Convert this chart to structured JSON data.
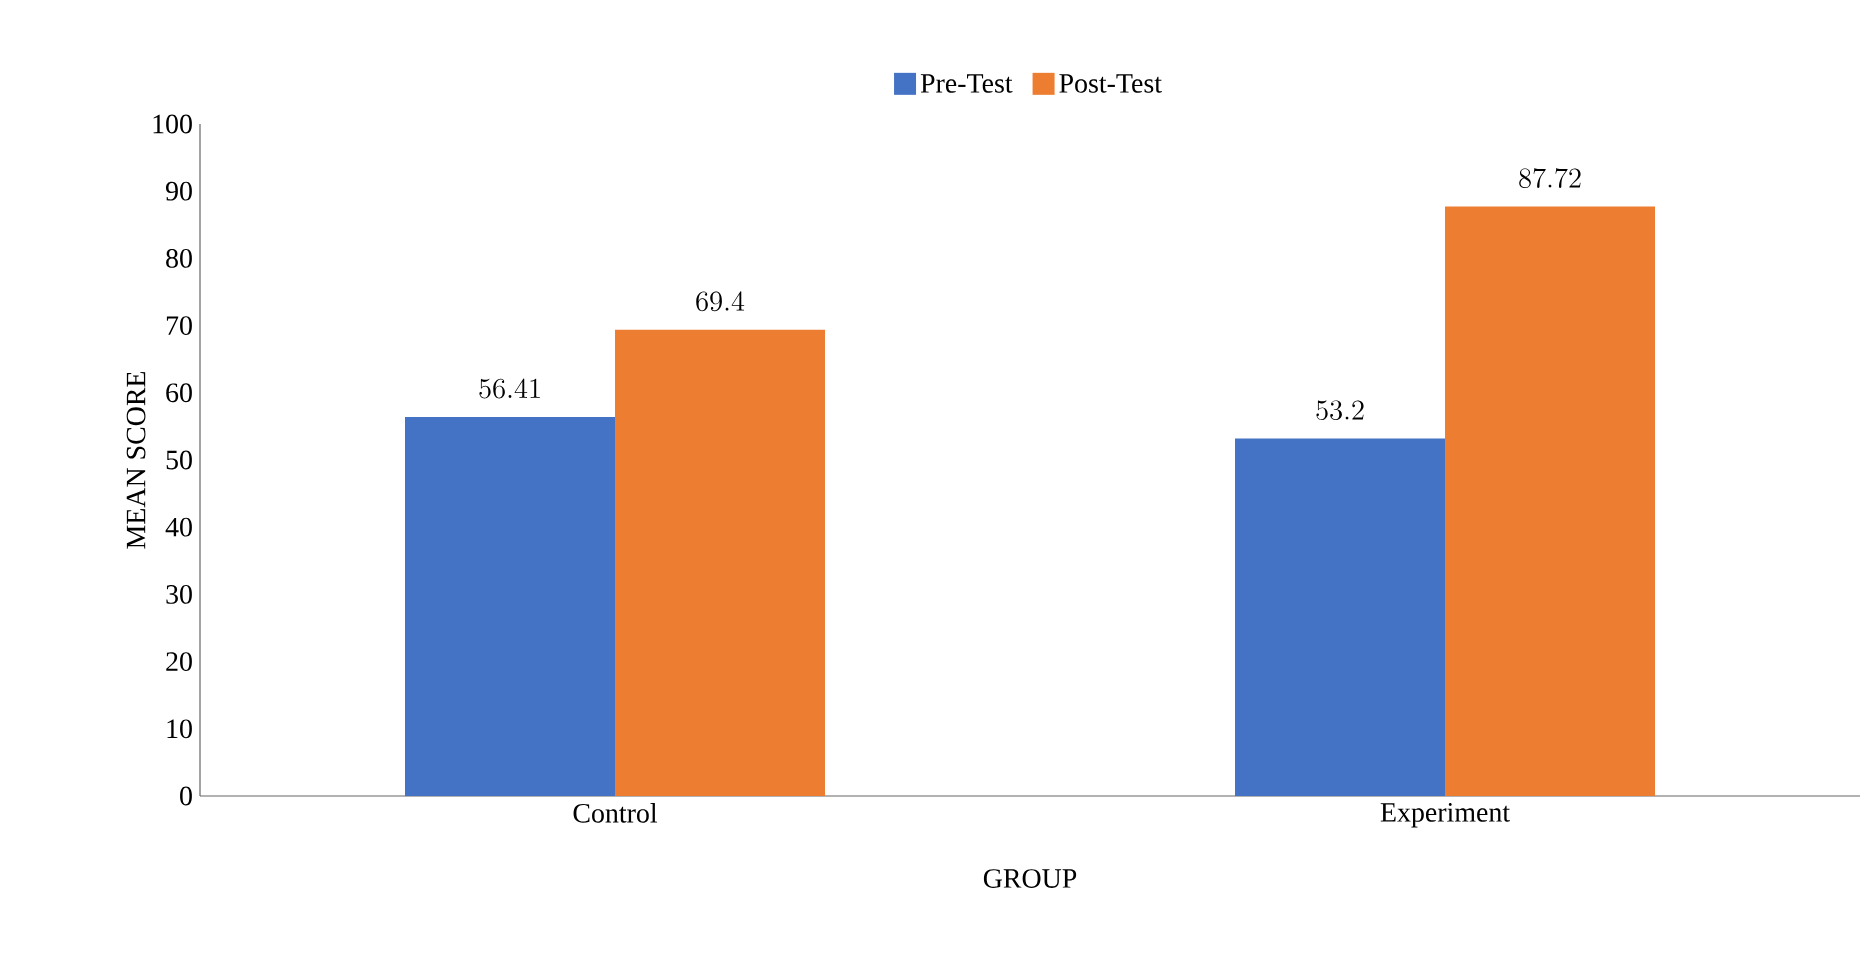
{
  "chart_data": {
    "type": "bar",
    "xlabel": "GROUP",
    "ylabel": "MEAN SCORE",
    "categories": [
      "Control",
      "Experiment"
    ],
    "series": [
      {
        "name": "Pre-Test",
        "color": "#4472c4",
        "values": [
          56.41,
          53.2
        ]
      },
      {
        "name": "Post-Test",
        "color": "#ed7d31",
        "values": [
          69.4,
          87.72
        ]
      }
    ],
    "ylim": [
      0,
      100
    ],
    "yticks": [
      0,
      10,
      20,
      30,
      40,
      50,
      60,
      70,
      80,
      90,
      100
    ],
    "data_labels": true,
    "legend": "top",
    "grid": false
  }
}
